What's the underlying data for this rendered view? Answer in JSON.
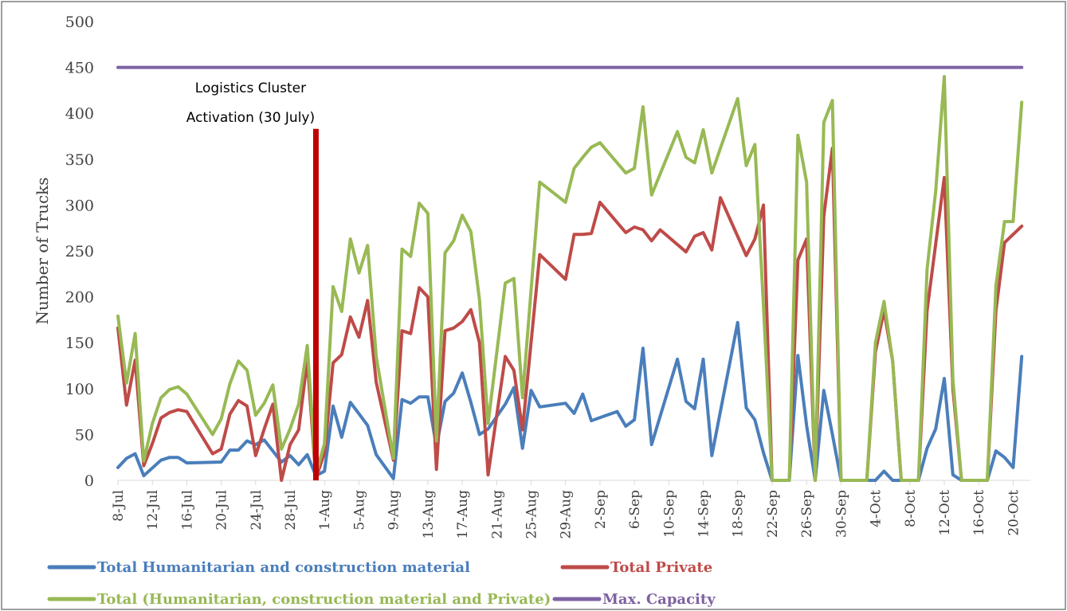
{
  "chart_data": {
    "type": "line",
    "title": "",
    "xlabel": "",
    "ylabel": "Number of Trucks",
    "ylim": [
      0,
      500
    ],
    "yticks": [
      0,
      50,
      100,
      150,
      200,
      250,
      300,
      350,
      400,
      450,
      500
    ],
    "xlim": [
      "2014-07-08",
      "2014-10-22"
    ],
    "xtick_labels": [
      "8-Jul",
      "12-Jul",
      "16-Jul",
      "20-Jul",
      "24-Jul",
      "28-Jul",
      "1-Aug",
      "5-Aug",
      "9-Aug",
      "13-Aug",
      "17-Aug",
      "21-Aug",
      "25-Aug",
      "29-Aug",
      "2-Sep",
      "6-Sep",
      "10-Sep",
      "14-Sep",
      "18-Sep",
      "22-Sep",
      "26-Sep",
      "30-Sep",
      "4-Oct",
      "8-Oct",
      "12-Oct",
      "16-Oct",
      "20-Oct"
    ],
    "grid": false,
    "legend_position": "bottom",
    "annotations": [
      {
        "text_lines": [
          "Logistics Cluster",
          "Activation (30 July)"
        ],
        "x": "2014-07-31",
        "y_top": 383,
        "color": "#c00000"
      }
    ],
    "series": [
      {
        "name": "Total Humanitarian and construction material",
        "color": "#4a7ebb",
        "points": [
          [
            "2014-07-08",
            14
          ],
          [
            "2014-07-09",
            24
          ],
          [
            "2014-07-10",
            29
          ],
          [
            "2014-07-11",
            5
          ],
          [
            "2014-07-13",
            22
          ],
          [
            "2014-07-14",
            25
          ],
          [
            "2014-07-15",
            25
          ],
          [
            "2014-07-16",
            19
          ],
          [
            "2014-07-20",
            20
          ],
          [
            "2014-07-21",
            33
          ],
          [
            "2014-07-22",
            33
          ],
          [
            "2014-07-23",
            43
          ],
          [
            "2014-07-24",
            39
          ],
          [
            "2014-07-25",
            44
          ],
          [
            "2014-07-27",
            20
          ],
          [
            "2014-07-28",
            27
          ],
          [
            "2014-07-29",
            17
          ],
          [
            "2014-07-30",
            28
          ],
          [
            "2014-07-31",
            5
          ],
          [
            "2014-08-01",
            10
          ],
          [
            "2014-08-02",
            81
          ],
          [
            "2014-08-03",
            47
          ],
          [
            "2014-08-04",
            85
          ],
          [
            "2014-08-06",
            60
          ],
          [
            "2014-08-07",
            28
          ],
          [
            "2014-08-09",
            2
          ],
          [
            "2014-08-10",
            88
          ],
          [
            "2014-08-11",
            84
          ],
          [
            "2014-08-12",
            91
          ],
          [
            "2014-08-13",
            91
          ],
          [
            "2014-08-14",
            37
          ],
          [
            "2014-08-15",
            86
          ],
          [
            "2014-08-16",
            95
          ],
          [
            "2014-08-17",
            117
          ],
          [
            "2014-08-18",
            85
          ],
          [
            "2014-08-19",
            50
          ],
          [
            "2014-08-20",
            56
          ],
          [
            "2014-08-22",
            83
          ],
          [
            "2014-08-23",
            101
          ],
          [
            "2014-08-24",
            35
          ],
          [
            "2014-08-25",
            98
          ],
          [
            "2014-08-26",
            80
          ],
          [
            "2014-08-29",
            84
          ],
          [
            "2014-08-30",
            73
          ],
          [
            "2014-08-31",
            94
          ],
          [
            "2014-09-01",
            65
          ],
          [
            "2014-09-04",
            75
          ],
          [
            "2014-09-05",
            59
          ],
          [
            "2014-09-06",
            66
          ],
          [
            "2014-09-07",
            144
          ],
          [
            "2014-09-08",
            39
          ],
          [
            "2014-09-11",
            132
          ],
          [
            "2014-09-12",
            86
          ],
          [
            "2014-09-13",
            78
          ],
          [
            "2014-09-14",
            132
          ],
          [
            "2014-09-15",
            27
          ],
          [
            "2014-09-18",
            172
          ],
          [
            "2014-09-19",
            79
          ],
          [
            "2014-09-20",
            66
          ],
          [
            "2014-09-21",
            30
          ],
          [
            "2014-09-22",
            0
          ],
          [
            "2014-09-24",
            0
          ],
          [
            "2014-09-25",
            136
          ],
          [
            "2014-09-26",
            60
          ],
          [
            "2014-09-27",
            0
          ],
          [
            "2014-09-28",
            98
          ],
          [
            "2014-09-29",
            50
          ],
          [
            "2014-09-30",
            0
          ],
          [
            "2014-10-03",
            0
          ],
          [
            "2014-10-04",
            0
          ],
          [
            "2014-10-05",
            10
          ],
          [
            "2014-10-06",
            0
          ],
          [
            "2014-10-09",
            0
          ],
          [
            "2014-10-10",
            35
          ],
          [
            "2014-10-11",
            56
          ],
          [
            "2014-10-12",
            111
          ],
          [
            "2014-10-13",
            6
          ],
          [
            "2014-10-14",
            0
          ],
          [
            "2014-10-17",
            0
          ],
          [
            "2014-10-18",
            32
          ],
          [
            "2014-10-19",
            25
          ],
          [
            "2014-10-20",
            14
          ],
          [
            "2014-10-21",
            135
          ]
        ]
      },
      {
        "name": "Total Private",
        "color": "#be4b48",
        "points": [
          [
            "2014-07-08",
            166
          ],
          [
            "2014-07-09",
            82
          ],
          [
            "2014-07-10",
            131
          ],
          [
            "2014-07-11",
            16
          ],
          [
            "2014-07-12",
            40
          ],
          [
            "2014-07-13",
            68
          ],
          [
            "2014-07-14",
            74
          ],
          [
            "2014-07-15",
            77
          ],
          [
            "2014-07-16",
            75
          ],
          [
            "2014-07-19",
            29
          ],
          [
            "2014-07-20",
            34
          ],
          [
            "2014-07-21",
            72
          ],
          [
            "2014-07-22",
            87
          ],
          [
            "2014-07-23",
            81
          ],
          [
            "2014-07-24",
            27
          ],
          [
            "2014-07-25",
            56
          ],
          [
            "2014-07-26",
            83
          ],
          [
            "2014-07-27",
            0
          ],
          [
            "2014-07-28",
            39
          ],
          [
            "2014-07-29",
            55
          ],
          [
            "2014-07-30",
            131
          ],
          [
            "2014-07-31",
            2
          ],
          [
            "2014-08-01",
            30
          ],
          [
            "2014-08-02",
            128
          ],
          [
            "2014-08-03",
            137
          ],
          [
            "2014-08-04",
            178
          ],
          [
            "2014-08-05",
            156
          ],
          [
            "2014-08-06",
            196
          ],
          [
            "2014-08-07",
            107
          ],
          [
            "2014-08-09",
            22
          ],
          [
            "2014-08-10",
            163
          ],
          [
            "2014-08-11",
            160
          ],
          [
            "2014-08-12",
            210
          ],
          [
            "2014-08-13",
            200
          ],
          [
            "2014-08-14",
            12
          ],
          [
            "2014-08-15",
            163
          ],
          [
            "2014-08-16",
            166
          ],
          [
            "2014-08-17",
            173
          ],
          [
            "2014-08-18",
            186
          ],
          [
            "2014-08-19",
            150
          ],
          [
            "2014-08-20",
            6
          ],
          [
            "2014-08-22",
            135
          ],
          [
            "2014-08-23",
            120
          ],
          [
            "2014-08-24",
            55
          ],
          [
            "2014-08-26",
            246
          ],
          [
            "2014-08-29",
            219
          ],
          [
            "2014-08-30",
            268
          ],
          [
            "2014-08-31",
            268
          ],
          [
            "2014-09-01",
            269
          ],
          [
            "2014-09-02",
            303
          ],
          [
            "2014-09-05",
            270
          ],
          [
            "2014-09-06",
            276
          ],
          [
            "2014-09-07",
            273
          ],
          [
            "2014-09-08",
            261
          ],
          [
            "2014-09-09",
            273
          ],
          [
            "2014-09-12",
            249
          ],
          [
            "2014-09-13",
            266
          ],
          [
            "2014-09-14",
            270
          ],
          [
            "2014-09-15",
            251
          ],
          [
            "2014-09-16",
            308
          ],
          [
            "2014-09-19",
            245
          ],
          [
            "2014-09-20",
            263
          ],
          [
            "2014-09-21",
            300
          ],
          [
            "2014-09-22",
            0
          ],
          [
            "2014-09-24",
            0
          ],
          [
            "2014-09-25",
            240
          ],
          [
            "2014-09-26",
            263
          ],
          [
            "2014-09-27",
            0
          ],
          [
            "2014-09-28",
            288
          ],
          [
            "2014-09-29",
            362
          ],
          [
            "2014-09-30",
            0
          ],
          [
            "2014-10-03",
            0
          ],
          [
            "2014-10-04",
            140
          ],
          [
            "2014-10-05",
            185
          ],
          [
            "2014-10-06",
            130
          ],
          [
            "2014-10-07",
            0
          ],
          [
            "2014-10-09",
            0
          ],
          [
            "2014-10-10",
            185
          ],
          [
            "2014-10-12",
            330
          ],
          [
            "2014-10-13",
            100
          ],
          [
            "2014-10-14",
            0
          ],
          [
            "2014-10-17",
            0
          ],
          [
            "2014-10-18",
            185
          ],
          [
            "2014-10-19",
            259
          ],
          [
            "2014-10-21",
            277
          ]
        ]
      },
      {
        "name": "Total (Humanitarian, construction material and Private)",
        "color": "#98b954",
        "points": [
          [
            "2014-07-08",
            179
          ],
          [
            "2014-07-09",
            106
          ],
          [
            "2014-07-10",
            160
          ],
          [
            "2014-07-11",
            21
          ],
          [
            "2014-07-12",
            62
          ],
          [
            "2014-07-13",
            90
          ],
          [
            "2014-07-14",
            99
          ],
          [
            "2014-07-15",
            102
          ],
          [
            "2014-07-16",
            94
          ],
          [
            "2014-07-19",
            50
          ],
          [
            "2014-07-20",
            67
          ],
          [
            "2014-07-21",
            105
          ],
          [
            "2014-07-22",
            130
          ],
          [
            "2014-07-23",
            120
          ],
          [
            "2014-07-24",
            71
          ],
          [
            "2014-07-25",
            84
          ],
          [
            "2014-07-26",
            104
          ],
          [
            "2014-07-27",
            34
          ],
          [
            "2014-07-28",
            56
          ],
          [
            "2014-07-29",
            83
          ],
          [
            "2014-07-30",
            147
          ],
          [
            "2014-07-31",
            7
          ],
          [
            "2014-08-01",
            40
          ],
          [
            "2014-08-02",
            211
          ],
          [
            "2014-08-03",
            184
          ],
          [
            "2014-08-04",
            263
          ],
          [
            "2014-08-05",
            226
          ],
          [
            "2014-08-06",
            256
          ],
          [
            "2014-08-07",
            135
          ],
          [
            "2014-08-09",
            24
          ],
          [
            "2014-08-10",
            252
          ],
          [
            "2014-08-11",
            244
          ],
          [
            "2014-08-12",
            302
          ],
          [
            "2014-08-13",
            291
          ],
          [
            "2014-08-14",
            43
          ],
          [
            "2014-08-15",
            248
          ],
          [
            "2014-08-16",
            261
          ],
          [
            "2014-08-17",
            289
          ],
          [
            "2014-08-18",
            271
          ],
          [
            "2014-08-19",
            197
          ],
          [
            "2014-08-20",
            62
          ],
          [
            "2014-08-22",
            215
          ],
          [
            "2014-08-23",
            220
          ],
          [
            "2014-08-24",
            90
          ],
          [
            "2014-08-26",
            325
          ],
          [
            "2014-08-29",
            303
          ],
          [
            "2014-08-30",
            340
          ],
          [
            "2014-08-31",
            352
          ],
          [
            "2014-09-01",
            363
          ],
          [
            "2014-09-02",
            368
          ],
          [
            "2014-09-05",
            335
          ],
          [
            "2014-09-06",
            340
          ],
          [
            "2014-09-07",
            407
          ],
          [
            "2014-09-08",
            311
          ],
          [
            "2014-09-11",
            380
          ],
          [
            "2014-09-12",
            352
          ],
          [
            "2014-09-13",
            346
          ],
          [
            "2014-09-14",
            382
          ],
          [
            "2014-09-15",
            335
          ],
          [
            "2014-09-18",
            416
          ],
          [
            "2014-09-19",
            343
          ],
          [
            "2014-09-20",
            366
          ],
          [
            "2014-09-21",
            190
          ],
          [
            "2014-09-22",
            0
          ],
          [
            "2014-09-24",
            0
          ],
          [
            "2014-09-25",
            376
          ],
          [
            "2014-09-26",
            325
          ],
          [
            "2014-09-27",
            0
          ],
          [
            "2014-09-28",
            390
          ],
          [
            "2014-09-29",
            414
          ],
          [
            "2014-09-30",
            0
          ],
          [
            "2014-10-03",
            0
          ],
          [
            "2014-10-04",
            150
          ],
          [
            "2014-10-05",
            195
          ],
          [
            "2014-10-06",
            130
          ],
          [
            "2014-10-07",
            0
          ],
          [
            "2014-10-09",
            0
          ],
          [
            "2014-10-10",
            230
          ],
          [
            "2014-10-11",
            315
          ],
          [
            "2014-10-12",
            440
          ],
          [
            "2014-10-13",
            110
          ],
          [
            "2014-10-14",
            0
          ],
          [
            "2014-10-17",
            0
          ],
          [
            "2014-10-18",
            212
          ],
          [
            "2014-10-19",
            282
          ],
          [
            "2014-10-20",
            282
          ],
          [
            "2014-10-21",
            412
          ]
        ]
      },
      {
        "name": "Max. Capacity",
        "color": "#7f63a2",
        "points": [
          [
            "2014-07-08",
            450
          ],
          [
            "2014-10-21",
            450
          ]
        ]
      }
    ]
  }
}
